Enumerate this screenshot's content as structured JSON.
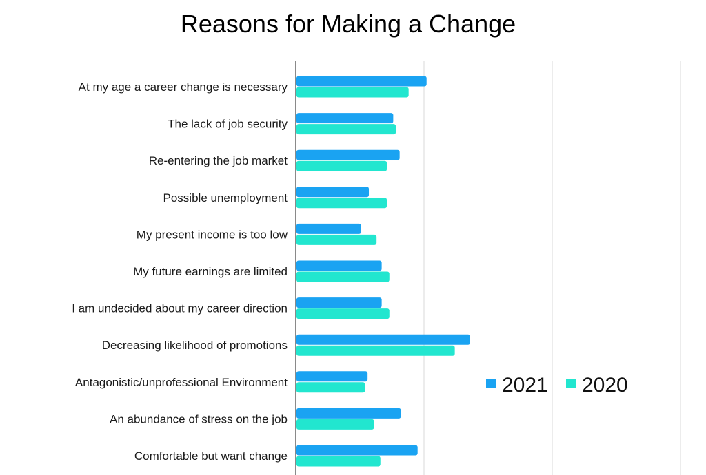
{
  "chart_data": {
    "type": "bar",
    "orientation": "horizontal",
    "title": "Reasons for Making a Change",
    "xlabel": "",
    "ylabel": "",
    "xlim": [
      0,
      3
    ],
    "grid": true,
    "legend": "right",
    "categories": [
      "At my age a career change is necessary",
      "The lack of job security",
      "Re-entering the job market",
      "Possible unemployment",
      "My present income is too low",
      "My future earnings are limited",
      "I am undecided about my career direction",
      "Decreasing likelihood of promotions",
      "Antagonistic/unprofessional Environment",
      "An abundance of stress on the job",
      "Comfortable but want change"
    ],
    "series": [
      {
        "name": "2021",
        "color": "#1aa3f2",
        "values": [
          1.02,
          0.76,
          0.81,
          0.57,
          0.51,
          0.67,
          0.67,
          1.36,
          0.56,
          0.82,
          0.95
        ]
      },
      {
        "name": "2020",
        "color": "#22e6cf",
        "values": [
          0.88,
          0.78,
          0.71,
          0.71,
          0.63,
          0.73,
          0.73,
          1.24,
          0.54,
          0.61,
          0.66
        ]
      }
    ]
  }
}
